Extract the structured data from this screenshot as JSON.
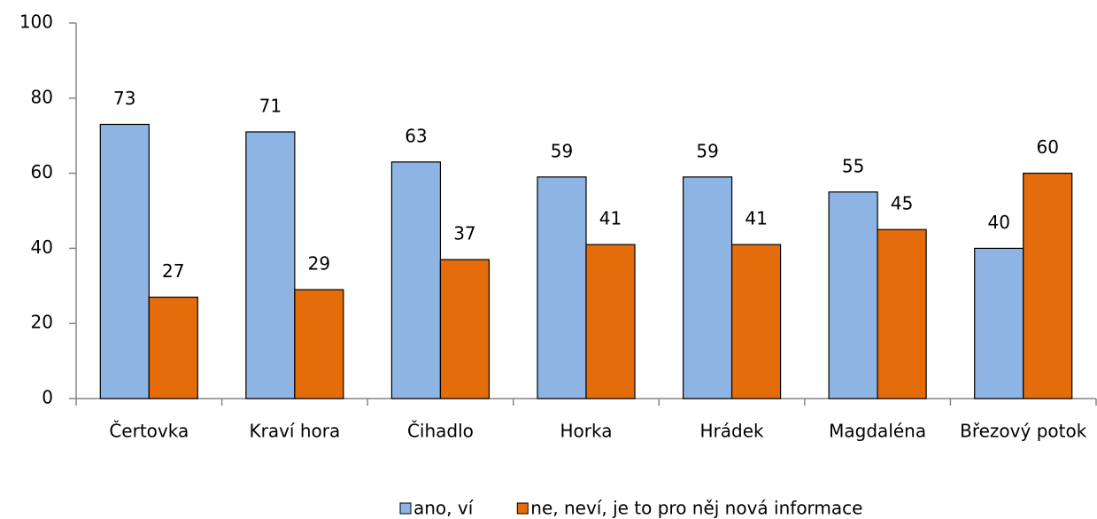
{
  "chart_data": {
    "type": "bar",
    "categories": [
      "Čertovka",
      "Kraví hora",
      "Čihadlo",
      "Horka",
      "Hrádek",
      "Magdaléna",
      "Březový potok"
    ],
    "series": [
      {
        "name": "ano, ví",
        "color": "#8eb4e3",
        "values": [
          73,
          71,
          63,
          59,
          59,
          55,
          40
        ]
      },
      {
        "name": "ne, neví, je to pro něj nová informace",
        "color": "#e46c0a",
        "values": [
          27,
          29,
          37,
          41,
          41,
          45,
          60
        ]
      }
    ],
    "ylim": [
      0,
      100
    ],
    "yticks": [
      0,
      20,
      40,
      60,
      80,
      100
    ],
    "grid": false
  }
}
